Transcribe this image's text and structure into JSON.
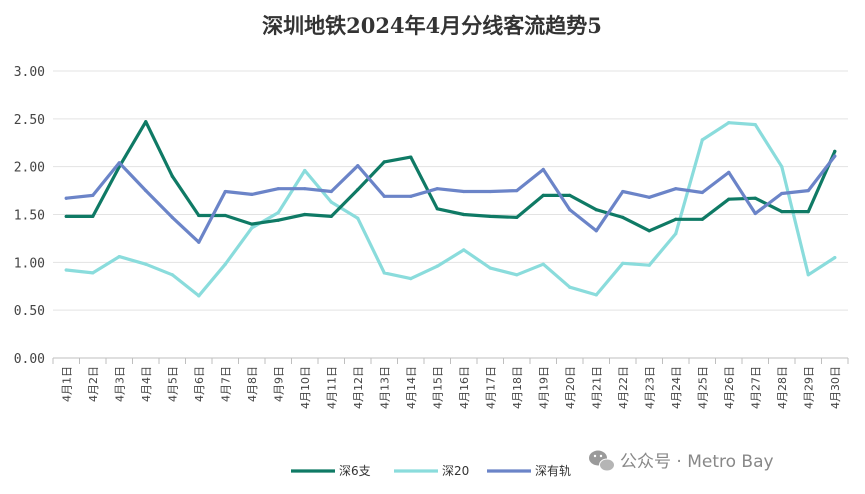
{
  "chart_data": {
    "type": "line",
    "title": "深圳地铁2024年4月分线客流趋势5",
    "xlabel": "",
    "ylabel": "",
    "ylim": [
      0,
      3
    ],
    "yticks": [
      "0.00",
      "0.50",
      "1.00",
      "1.50",
      "2.00",
      "2.50",
      "3.00"
    ],
    "grid": true,
    "legend_position": "bottom-center",
    "categories": [
      "4月1日",
      "4月2日",
      "4月3日",
      "4月4日",
      "4月5日",
      "4月6日",
      "4月7日",
      "4月8日",
      "4月9日",
      "4月10日",
      "4月11日",
      "4月12日",
      "4月13日",
      "4月14日",
      "4月15日",
      "4月16日",
      "4月17日",
      "4月18日",
      "4月19日",
      "4月20日",
      "4月21日",
      "4月22日",
      "4月23日",
      "4月24日",
      "4月25日",
      "4月26日",
      "4月27日",
      "4月28日",
      "4月29日",
      "4月30日"
    ],
    "series": [
      {
        "name": "深6支",
        "color": "#0f7a65",
        "values": [
          1.48,
          1.48,
          2.0,
          2.47,
          1.9,
          1.49,
          1.49,
          1.4,
          1.44,
          1.5,
          1.48,
          1.76,
          2.05,
          2.1,
          1.56,
          1.5,
          1.48,
          1.47,
          1.7,
          1.7,
          1.55,
          1.47,
          1.33,
          1.45,
          1.45,
          1.66,
          1.67,
          1.53,
          1.53,
          2.16
        ]
      },
      {
        "name": "深20",
        "color": "#8adcdc",
        "values": [
          0.92,
          0.89,
          1.06,
          0.98,
          0.87,
          0.65,
          0.98,
          1.36,
          1.52,
          1.96,
          1.63,
          1.46,
          0.89,
          0.83,
          0.96,
          1.13,
          0.94,
          0.87,
          0.98,
          0.74,
          0.66,
          0.99,
          0.97,
          1.3,
          2.28,
          2.46,
          2.44,
          2.0,
          0.87,
          1.05
        ]
      },
      {
        "name": "深有轨",
        "color": "#6b84c8",
        "values": [
          1.67,
          1.7,
          2.04,
          1.75,
          1.47,
          1.21,
          1.74,
          1.71,
          1.77,
          1.77,
          1.74,
          2.01,
          1.69,
          1.69,
          1.77,
          1.74,
          1.74,
          1.75,
          1.97,
          1.55,
          1.33,
          1.74,
          1.68,
          1.77,
          1.73,
          1.94,
          1.51,
          1.72,
          1.75,
          2.11
        ]
      }
    ]
  },
  "watermark": {
    "icon": "wechat-icon",
    "text": "公众号 · Metro Bay"
  }
}
